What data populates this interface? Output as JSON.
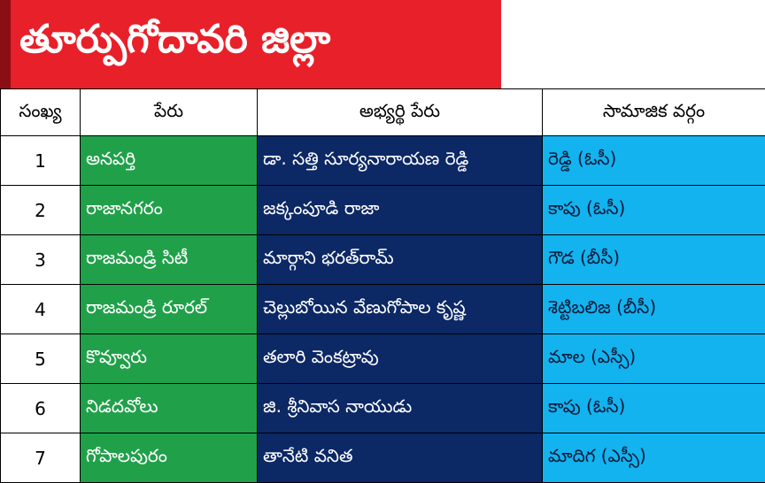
{
  "banner": {
    "title": "తూర్పుగోదావరి జిల్లా",
    "color": "#e8202a"
  },
  "table": {
    "headers": [
      "సంఖ్య",
      "పేరు",
      "అభ్యర్థి పేరు",
      "సామాజిక వర్గం"
    ],
    "rows": [
      {
        "num": "1",
        "name": "అనపర్తి",
        "candidate": "డా. సత్తి సూర్యనారాయణ రెడ్డి",
        "caste": "రెడ్డి (ఓసీ)"
      },
      {
        "num": "2",
        "name": "రాజానగరం",
        "candidate": "జక్కంపూడి రాజా",
        "caste": "కాపు (ఓసీ)"
      },
      {
        "num": "3",
        "name": "రాజమండ్రి సిటీ",
        "candidate": "మార్గాని భరత్‌రామ్",
        "caste": "గౌడ (బీసీ)"
      },
      {
        "num": "4",
        "name": "రాజమండ్రి రూరల్",
        "candidate": "చెల్లుబోయిన వేణుగోపాల కృష్ణ",
        "caste": "శెట్టిబలిజ (బీసీ)"
      },
      {
        "num": "5",
        "name": "కొవ్వూరు",
        "candidate": "తలారి వెంకట్రావు",
        "caste": "మాల (ఎస్సీ)"
      },
      {
        "num": "6",
        "name": "నిడదవోలు",
        "candidate": "జి. శ్రీనివాస నాయుడు",
        "caste": "కాపు (ఓసీ)"
      },
      {
        "num": "7",
        "name": "గోపాలపురం",
        "candidate": "తానేటి వనిత",
        "caste": "మాదిగ (ఎస్సీ)"
      }
    ]
  },
  "colors": {
    "name_column": "#21a04a",
    "candidate_column": "#0c2865",
    "caste_column": "#13b3ef"
  }
}
